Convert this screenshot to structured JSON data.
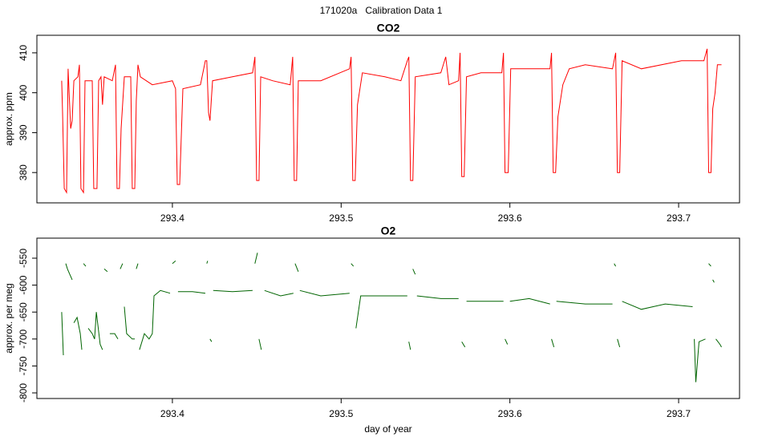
{
  "title": "171020a   Calibration Data 1",
  "chart_data": [
    {
      "type": "line",
      "title": "CO2",
      "y_label": "approx. ppm",
      "xlim": [
        293.3197,
        293.7361
      ],
      "xticks": [
        293.4,
        293.5,
        293.6,
        293.7
      ],
      "ylim": [
        372.4,
        414.4
      ],
      "yticks": [
        380,
        390,
        400,
        410
      ],
      "x": [
        293.3344,
        293.3349,
        293.3359,
        293.3373,
        293.3382,
        293.3397,
        293.3406,
        293.3416,
        293.344,
        293.3449,
        293.3458,
        293.3473,
        293.3482,
        293.3525,
        293.3534,
        293.3553,
        293.3563,
        293.3577,
        293.3586,
        293.3596,
        293.3644,
        293.3663,
        293.3672,
        293.3686,
        293.3696,
        293.3715,
        293.3753,
        293.3762,
        293.3777,
        293.3786,
        293.3796,
        293.381,
        293.3881,
        293.4,
        293.4019,
        293.4029,
        293.4043,
        293.4062,
        293.4166,
        293.4195,
        293.4204,
        293.4214,
        293.4223,
        293.4238,
        293.4356,
        293.4475,
        293.4489,
        293.4499,
        293.4513,
        293.4523,
        293.4594,
        293.4698,
        293.4713,
        293.4722,
        293.4736,
        293.4746,
        293.4879,
        293.505,
        293.5059,
        293.5069,
        293.5083,
        293.5097,
        293.5126,
        293.5259,
        293.5354,
        293.5392,
        293.5401,
        293.5411,
        293.5425,
        293.5439,
        293.5591,
        293.562,
        293.5639,
        293.5696,
        293.5705,
        293.5715,
        293.5729,
        293.5743,
        293.5829,
        293.5952,
        293.5962,
        293.5971,
        293.599,
        293.6005,
        293.6114,
        293.6238,
        293.6247,
        293.6257,
        293.6271,
        293.6285,
        293.6314,
        293.6352,
        293.6447,
        293.6608,
        293.6627,
        293.6637,
        293.6651,
        293.6665,
        293.6779,
        293.7017,
        293.715,
        293.7169,
        293.7178,
        293.7192,
        293.7202,
        293.7216,
        293.723,
        293.7254
      ],
      "series": [
        {
          "color": "#ff0000",
          "values": [
            403,
            395,
            376,
            375,
            406,
            391,
            393,
            403,
            404,
            407,
            376,
            375,
            403,
            403,
            376,
            376,
            403,
            404,
            397,
            404,
            403,
            407,
            376,
            376,
            391,
            404,
            404,
            376,
            376,
            398,
            407,
            404,
            402,
            403,
            401,
            377,
            377,
            401,
            402,
            408,
            408,
            395,
            393,
            403,
            404,
            405,
            409,
            378,
            378,
            404,
            403,
            402,
            409,
            378,
            378,
            403,
            403,
            406,
            409,
            378,
            378,
            397,
            405,
            404,
            403,
            408,
            409,
            378,
            378,
            404,
            405,
            409,
            402,
            403,
            410,
            379,
            379,
            404,
            405,
            405,
            410,
            380,
            380,
            406,
            406,
            406,
            410,
            380,
            380,
            394,
            402,
            406,
            407,
            406,
            410,
            380,
            380,
            408,
            406,
            408,
            408,
            411,
            380,
            380,
            396,
            400,
            407,
            407
          ]
        }
      ]
    },
    {
      "type": "line",
      "title": "O2",
      "y_label": "approx. per meg",
      "x_label": "day of year",
      "xlim": [
        293.3197,
        293.7361
      ],
      "xticks": [
        293.4,
        293.5,
        293.6,
        293.7
      ],
      "ylim": [
        -810.4,
        -512.8
      ],
      "yticks": [
        -800,
        -750,
        -700,
        -650,
        -600,
        -550
      ],
      "x": [
        293.3344,
        293.3354,
        293.3359,
        293.3368,
        293.3378,
        293.3392,
        293.3406,
        293.3411,
        293.3416,
        293.3435,
        293.3454,
        293.3463,
        293.3468,
        293.3473,
        293.3487,
        293.3496,
        293.3501,
        293.3525,
        293.3539,
        293.3549,
        293.3572,
        293.3586,
        293.3591,
        293.3596,
        293.3615,
        293.3625,
        293.3629,
        293.3658,
        293.3677,
        293.3686,
        293.3691,
        293.3705,
        293.371,
        293.3715,
        293.3729,
        293.3762,
        293.3777,
        293.3781,
        293.3786,
        293.3796,
        293.3801,
        293.3805,
        293.3834,
        293.3862,
        293.3881,
        293.3891,
        293.3929,
        293.3986,
        293.399,
        293.4,
        293.4019,
        293.4024,
        293.4033,
        293.4119,
        293.4195,
        293.42,
        293.4204,
        293.4209,
        293.4214,
        293.4223,
        293.4233,
        293.4238,
        293.4242,
        293.4356,
        293.4475,
        293.4485,
        293.4489,
        293.4504,
        293.4508,
        293.4513,
        293.4527,
        293.4537,
        293.4546,
        293.4641,
        293.4717,
        293.4722,
        293.4727,
        293.4746,
        293.475,
        293.4755,
        293.4879,
        293.505,
        293.5054,
        293.5059,
        293.5073,
        293.5083,
        293.5088,
        293.5116,
        293.5259,
        293.5392,
        293.5397,
        293.5401,
        293.5411,
        293.5416,
        293.5425,
        293.5439,
        293.5444,
        293.5449,
        293.5591,
        293.5696,
        293.5705,
        293.5715,
        293.5734,
        293.5739,
        293.5743,
        293.5829,
        293.5962,
        293.5967,
        293.5971,
        293.5986,
        293.5995,
        293.6,
        293.6114,
        293.6238,
        293.6242,
        293.6247,
        293.6261,
        293.6266,
        293.6276,
        293.6447,
        293.6608,
        293.6613,
        293.6618,
        293.6627,
        293.6632,
        293.6637,
        293.6651,
        293.6656,
        293.6665,
        293.6779,
        293.6921,
        293.7083,
        293.7088,
        293.7093,
        293.7102,
        293.7121,
        293.7159,
        293.7169,
        293.7178,
        293.7192,
        293.7197,
        293.7202,
        293.7211,
        293.7216,
        293.7221,
        293.7245,
        293.7254
      ],
      "series": [
        {
          "color": "#006400",
          "values": [
            -650,
            -730,
            null,
            -560,
            -570,
            -580,
            -590,
            null,
            -670,
            -660,
            -690,
            -720,
            null,
            -560,
            -565,
            null,
            -680,
            -690,
            -700,
            -650,
            -710,
            -720,
            null,
            -570,
            -575,
            null,
            -690,
            -690,
            -700,
            null,
            -570,
            -560,
            null,
            -640,
            -690,
            -700,
            -700,
            null,
            -570,
            -560,
            null,
            -720,
            -690,
            -700,
            -690,
            -620,
            -610,
            -615,
            null,
            -560,
            -555,
            null,
            -612,
            -612,
            -615,
            null,
            -560,
            -555,
            null,
            -700,
            -705,
            null,
            -610,
            -612,
            -610,
            null,
            -560,
            -540,
            null,
            -700,
            -720,
            null,
            -610,
            -620,
            -615,
            null,
            -560,
            -575,
            null,
            -610,
            -620,
            -615,
            null,
            -560,
            -565,
            null,
            -680,
            -620,
            -620,
            -620,
            null,
            -705,
            -720,
            null,
            -570,
            -580,
            null,
            -620,
            -625,
            -625,
            null,
            -705,
            -715,
            null,
            -630,
            -630,
            -630,
            null,
            -700,
            -710,
            null,
            -630,
            -625,
            -635,
            null,
            -700,
            -715,
            null,
            -630,
            -635,
            -635,
            null,
            -560,
            -565,
            null,
            -700,
            -715,
            null,
            -630,
            -645,
            -635,
            -640,
            null,
            -700,
            -780,
            -705,
            -700,
            null,
            -560,
            -565,
            null,
            -590,
            -595,
            null,
            -700,
            -710,
            -715
          ]
        }
      ]
    }
  ]
}
